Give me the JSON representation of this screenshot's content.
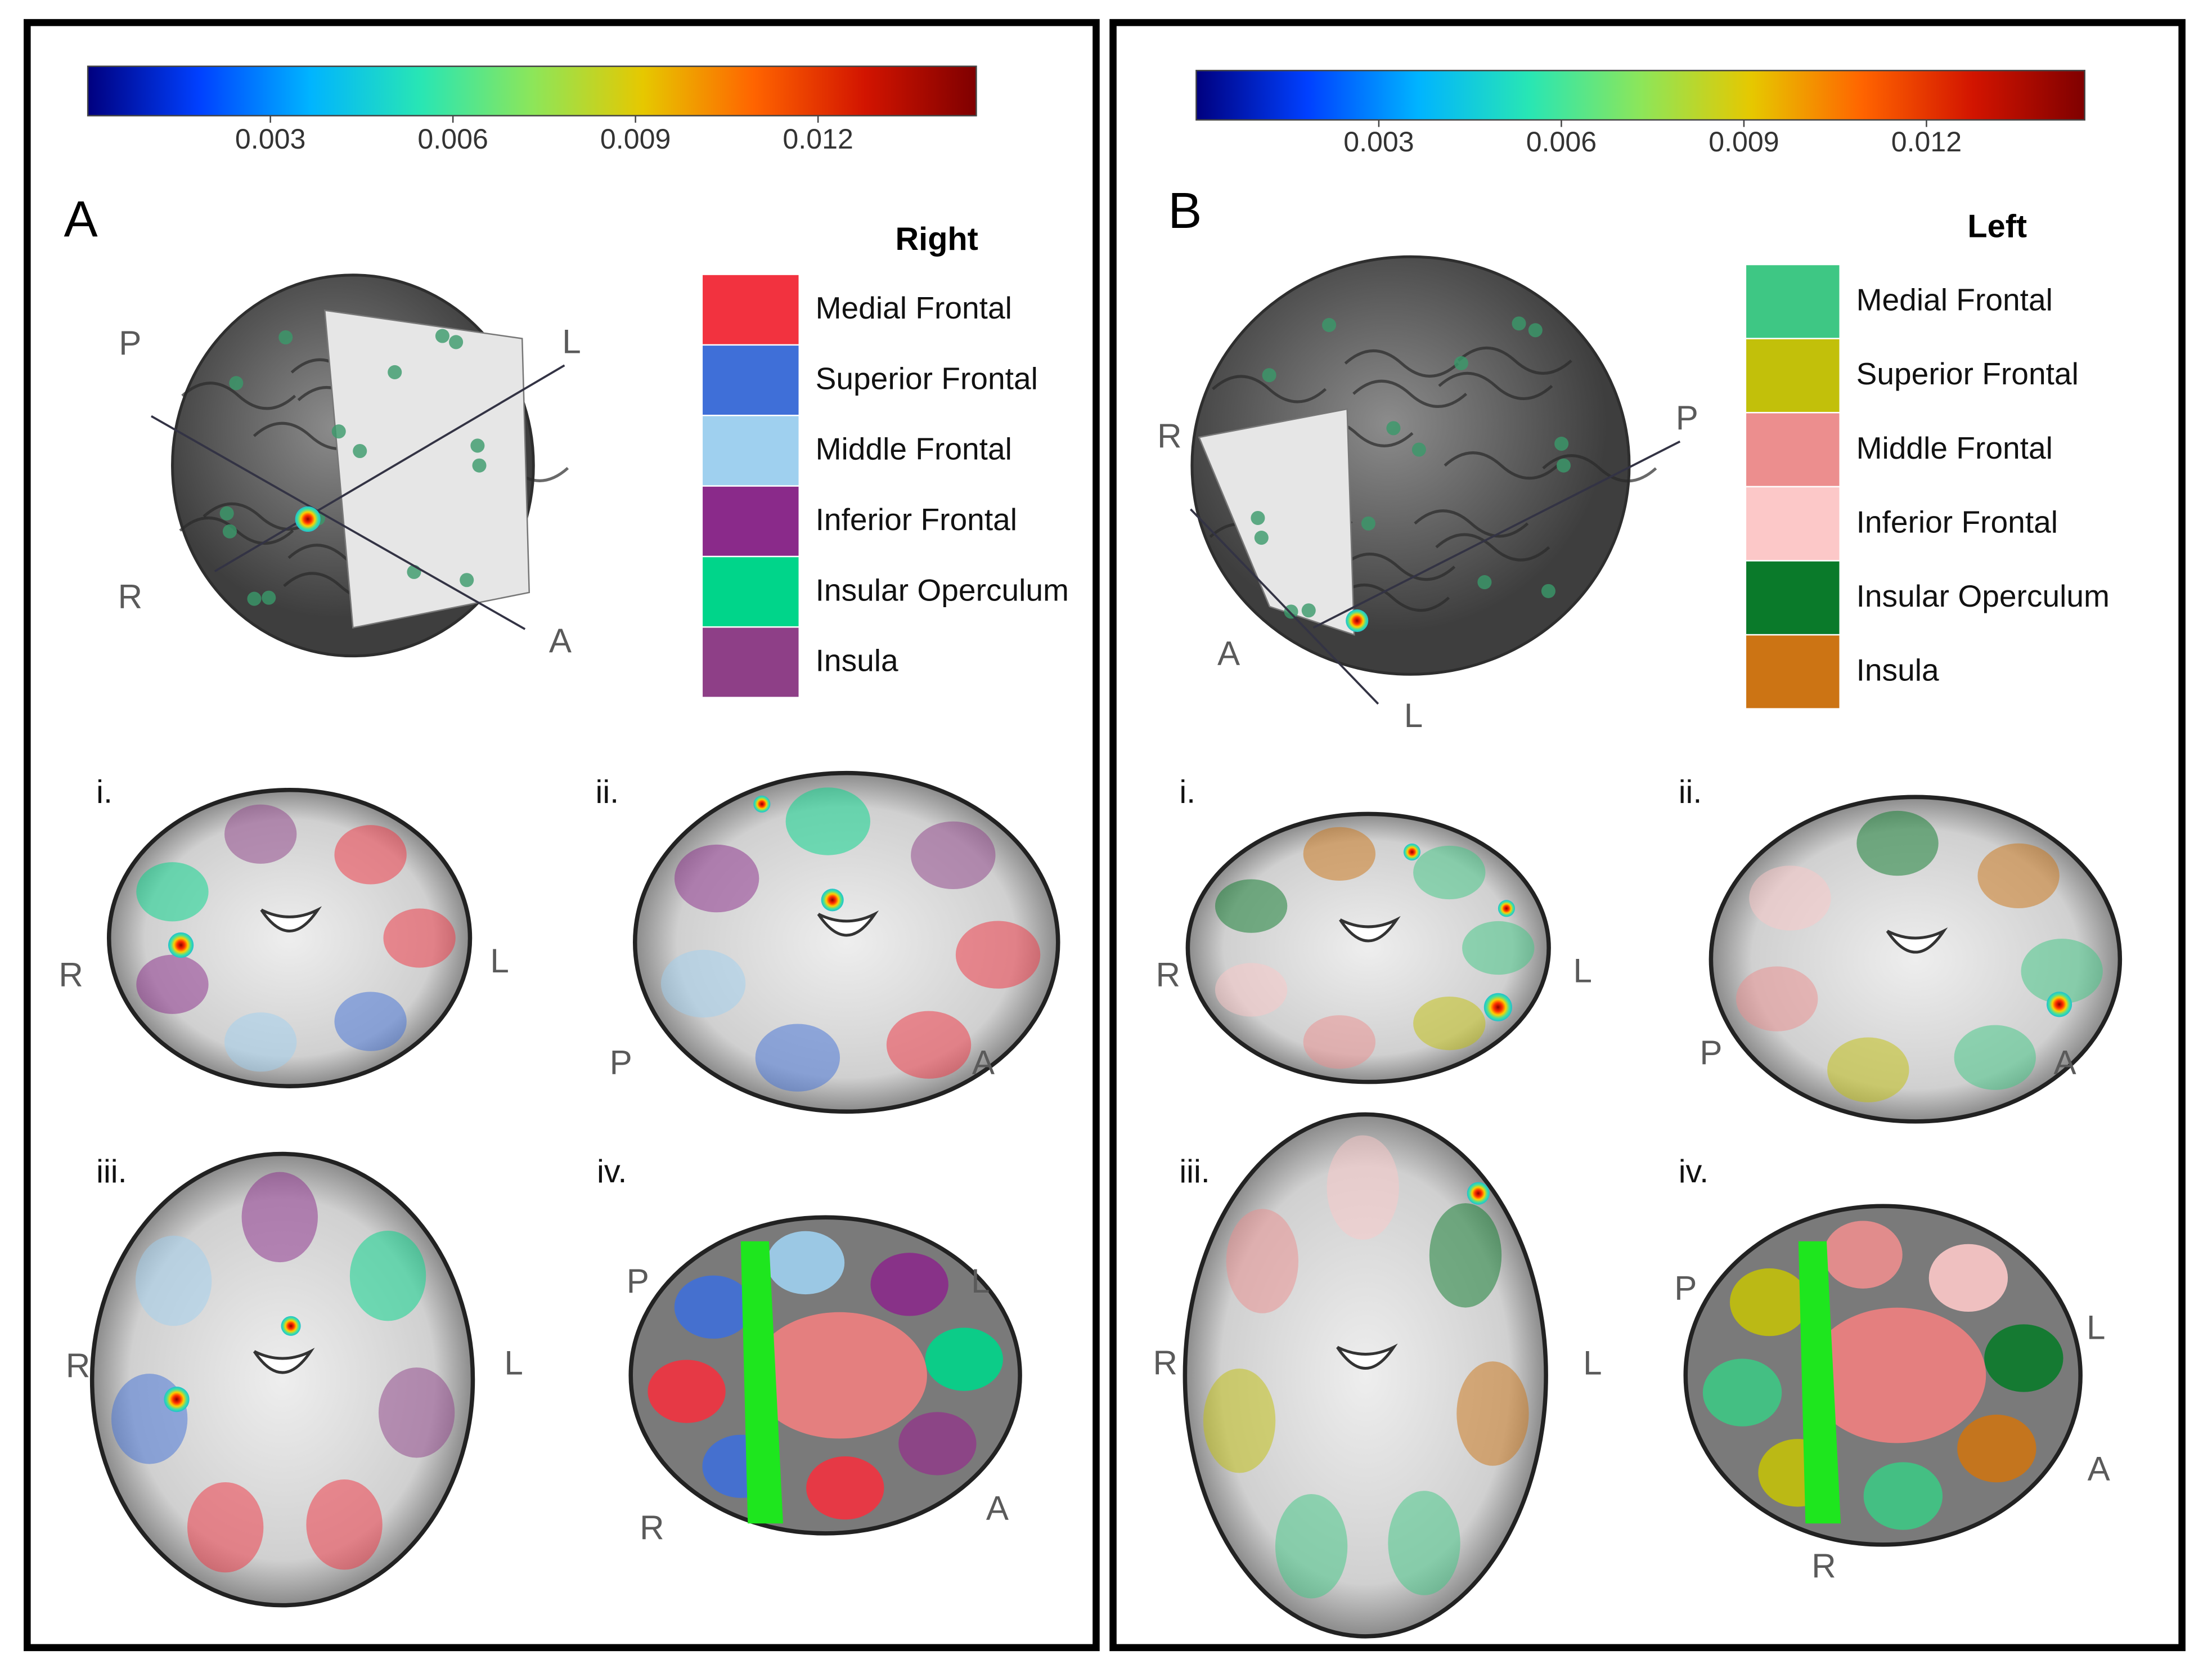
{
  "panels": [
    {
      "letter": "A",
      "colorbar": {
        "range": [
          0,
          0.0146
        ],
        "ticks": [
          0.003,
          0.006,
          0.009,
          0.012
        ],
        "colormap": [
          "#00007f",
          "#0040ff",
          "#00b4ff",
          "#28e6b4",
          "#8ce65a",
          "#e6c800",
          "#ff6400",
          "#d21400",
          "#7f0000"
        ]
      },
      "legend": {
        "title": "Right",
        "items": [
          {
            "label": "Medial Frontal",
            "color": "#f2323f"
          },
          {
            "label": "Superior Frontal",
            "color": "#3f6fd8"
          },
          {
            "label": "Middle Frontal",
            "color": "#9fd0ef"
          },
          {
            "label": "Inferior Frontal",
            "color": "#8a2a8a"
          },
          {
            "label": "Insular Operculum",
            "color": "#00d58a"
          },
          {
            "label": "Insula",
            "color": "#8e3f87"
          }
        ]
      },
      "orientation_3d": [
        "P",
        "L",
        "R",
        "A"
      ],
      "views": [
        {
          "label": "i.",
          "orientations": [
            "R",
            "L"
          ]
        },
        {
          "label": "ii.",
          "orientations": [
            "P",
            "A"
          ]
        },
        {
          "label": "iii.",
          "orientations": [
            "R",
            "L"
          ]
        },
        {
          "label": "iv.",
          "orientations": [
            "P",
            "L",
            "R",
            "A"
          ]
        }
      ]
    },
    {
      "letter": "B",
      "colorbar": {
        "range": [
          0,
          0.0146
        ],
        "ticks": [
          0.003,
          0.006,
          0.009,
          0.012
        ],
        "colormap": [
          "#00007f",
          "#0040ff",
          "#00b4ff",
          "#28e6b4",
          "#8ce65a",
          "#e6c800",
          "#ff6400",
          "#d21400",
          "#7f0000"
        ]
      },
      "legend": {
        "title": "Left",
        "items": [
          {
            "label": "Medial Frontal",
            "color": "#3ec784"
          },
          {
            "label": "Superior Frontal",
            "color": "#c2c00a"
          },
          {
            "label": "Middle Frontal",
            "color": "#ec8e8e"
          },
          {
            "label": "Inferior Frontal",
            "color": "#fcc8c8"
          },
          {
            "label": "Insular Operculum",
            "color": "#0a7a2a"
          },
          {
            "label": "Insula",
            "color": "#cc7414"
          }
        ]
      },
      "orientation_3d": [
        "R",
        "P",
        "A",
        "L"
      ],
      "views": [
        {
          "label": "i.",
          "orientations": [
            "R",
            "L"
          ]
        },
        {
          "label": "ii.",
          "orientations": [
            "P",
            "A"
          ]
        },
        {
          "label": "iii.",
          "orientations": [
            "R",
            "L"
          ]
        },
        {
          "label": "iv.",
          "orientations": [
            "P",
            "L",
            "A",
            "R"
          ]
        }
      ]
    }
  ]
}
